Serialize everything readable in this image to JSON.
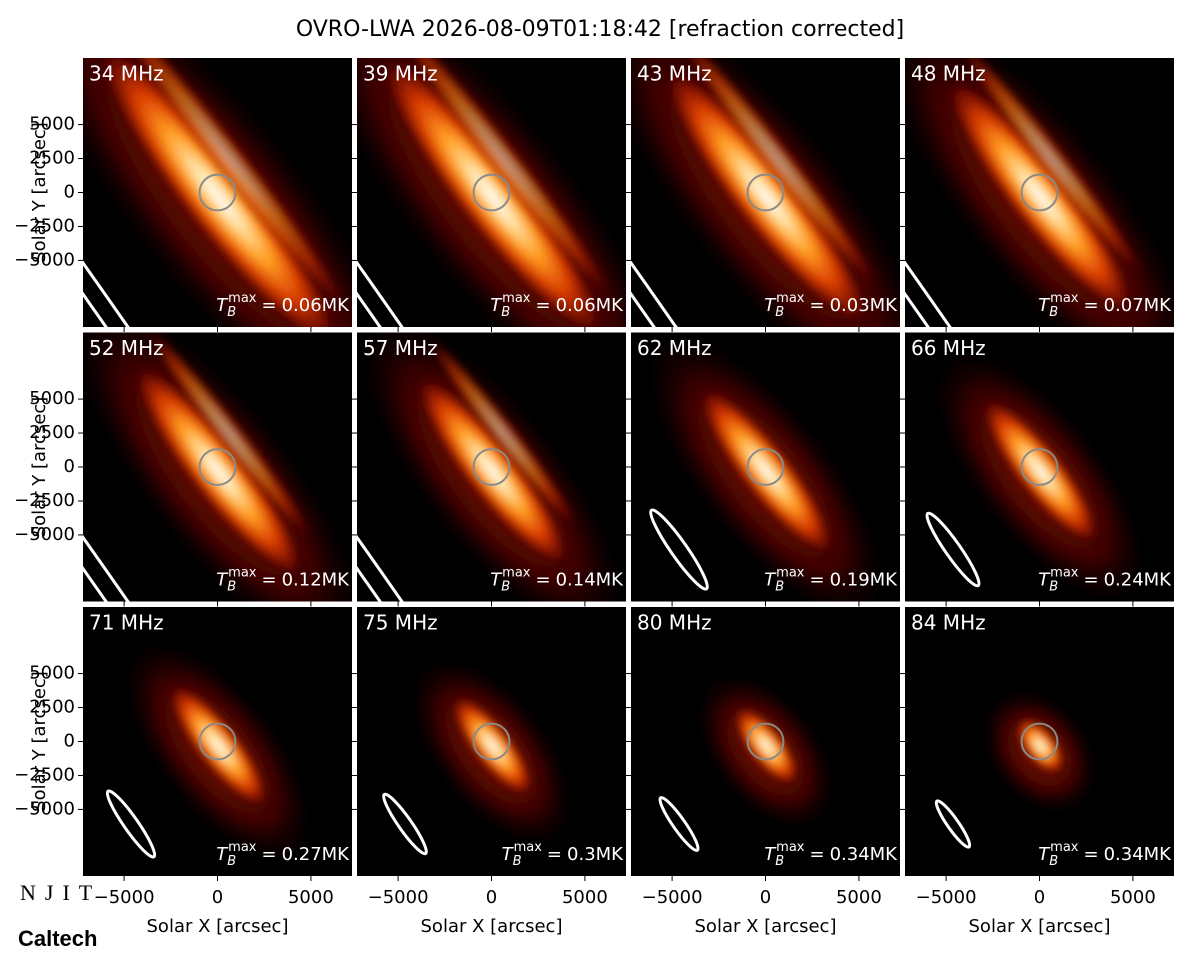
{
  "chart_data": {
    "type": "image-grid",
    "title": "OVRO-LWA 2026-08-09T01:18:42 [refraction corrected]",
    "xlabel": "Solar X [arcsec]",
    "ylabel": "Solar Y [arcsec]",
    "xlim": [
      -7200,
      7200
    ],
    "ylim": [
      -9900,
      9900
    ],
    "xticks": [
      {
        "value": -5000,
        "label": "−5000"
      },
      0,
      5000
    ],
    "yticks": [
      {
        "value": -5000,
        "label": "−5000"
      },
      {
        "value": -2500,
        "label": "−2500"
      },
      0,
      2500,
      5000
    ],
    "solar_radius": 960,
    "tb_symbol": "T",
    "tb_subscript": "B",
    "tb_superscript": "max",
    "tb_equals": "=",
    "tb_unit": "MK",
    "panels": [
      {
        "freq": "34 MHz",
        "tb_max": 0.06
      },
      {
        "freq": "39 MHz",
        "tb_max": 0.06
      },
      {
        "freq": "43 MHz",
        "tb_max": 0.03
      },
      {
        "freq": "48 MHz",
        "tb_max": 0.07
      },
      {
        "freq": "52 MHz",
        "tb_max": 0.12
      },
      {
        "freq": "57 MHz",
        "tb_max": 0.14
      },
      {
        "freq": "62 MHz",
        "tb_max": 0.19
      },
      {
        "freq": "66 MHz",
        "tb_max": 0.24
      },
      {
        "freq": "71 MHz",
        "tb_max": 0.27
      },
      {
        "freq": "75 MHz",
        "tb_max": 0.3
      },
      {
        "freq": "80 MHz",
        "tb_max": 0.34
      },
      {
        "freq": "84 MHz",
        "tb_max": 0.34
      }
    ],
    "logos": [
      "NJIT",
      "Caltech"
    ]
  }
}
